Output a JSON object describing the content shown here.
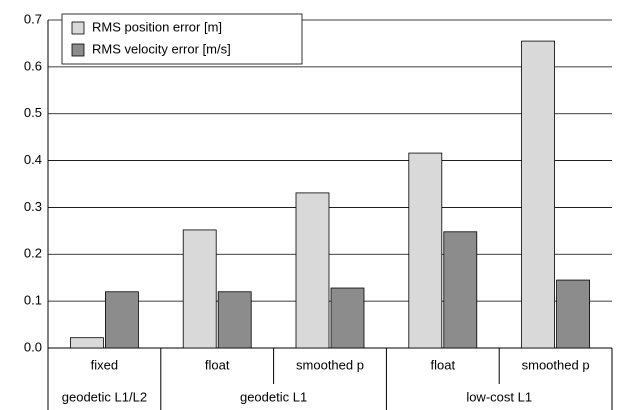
{
  "chart_data": {
    "type": "bar",
    "groups": [
      {
        "name": "geodetic L1/L2",
        "categories": [
          "fixed"
        ]
      },
      {
        "name": "geodetic L1",
        "categories": [
          "float",
          "smoothed p"
        ]
      },
      {
        "name": "low-cost L1",
        "categories": [
          "float",
          "smoothed p"
        ]
      }
    ],
    "series": [
      {
        "name": "RMS position error [m]",
        "color": "#d9d9d9",
        "values": [
          0.022,
          0.252,
          0.331,
          0.416,
          0.655
        ]
      },
      {
        "name": "RMS velocity error [m/s]",
        "color": "#8c8c8c",
        "values": [
          0.12,
          0.12,
          0.128,
          0.248,
          0.145
        ]
      }
    ],
    "ylim": [
      0,
      0.7
    ],
    "yticks": [
      {
        "value": 0,
        "label": "0.0"
      },
      0.1,
      0.2,
      0.3,
      0.4,
      0.5,
      0.6,
      0.7
    ],
    "grid": true,
    "legend": "top-left"
  }
}
